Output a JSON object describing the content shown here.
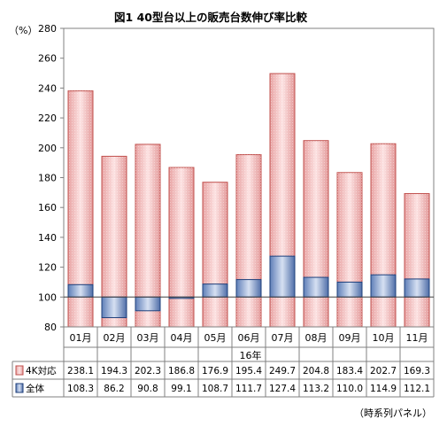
{
  "chart_data": {
    "type": "bar",
    "title": "図1 40型台以上の販売台数伸び率比較",
    "ylabel": "（%）",
    "xlabel": "16年",
    "ylim": [
      80,
      280
    ],
    "yticks": [
      80,
      100,
      120,
      140,
      160,
      180,
      200,
      220,
      240,
      260,
      280
    ],
    "baseline": 100,
    "grid": false,
    "legend": "table-below",
    "categories": [
      "01月",
      "02月",
      "03月",
      "04月",
      "05月",
      "06月",
      "07月",
      "08月",
      "09月",
      "10月",
      "11月"
    ],
    "series": [
      {
        "name": "4K対応",
        "color": "#f2b8b8",
        "edge": "#c0504d",
        "values": [
          238.1,
          194.3,
          202.3,
          186.8,
          176.9,
          195.4,
          249.7,
          204.8,
          183.4,
          202.7,
          169.3
        ],
        "labels": [
          "238.1",
          "194.3",
          "202.3",
          "186.8",
          "176.9",
          "195.4",
          "249.7",
          "204.8",
          "183.4",
          "202.7",
          "169.3"
        ]
      },
      {
        "name": "全体",
        "color": "#8fa6cf",
        "edge": "#1f3f7a",
        "values": [
          108.3,
          86.2,
          90.8,
          99.1,
          108.7,
          111.7,
          127.4,
          113.2,
          110.0,
          114.9,
          112.1
        ],
        "labels": [
          "108.3",
          "86.2",
          "90.8",
          "99.1",
          "108.7",
          "111.7",
          "127.4",
          "113.2",
          "110.0",
          "114.9",
          "112.1"
        ]
      }
    ],
    "note": "（時系列パネル）"
  }
}
